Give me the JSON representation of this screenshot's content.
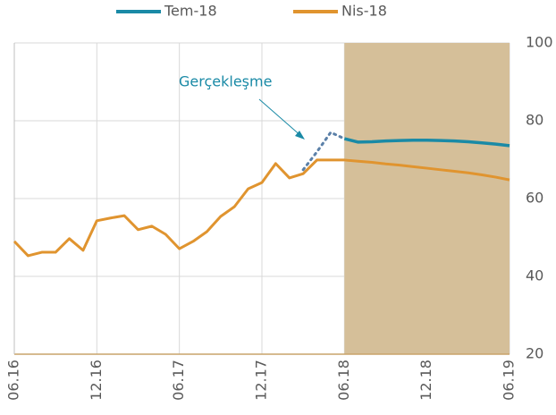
{
  "chart_data": {
    "type": "line",
    "categories": [
      "06.16",
      null,
      null,
      null,
      null,
      null,
      "12.16",
      null,
      null,
      null,
      null,
      null,
      "06.17",
      null,
      null,
      null,
      null,
      null,
      "12.17",
      null,
      null,
      null,
      null,
      null,
      "06.18",
      null,
      null,
      null,
      null,
      null,
      "12.18",
      null,
      null,
      null,
      null,
      null,
      "06.19"
    ],
    "series": [
      {
        "name": "Tem-18",
        "color": "#1a8aa6",
        "values": [
          null,
          null,
          null,
          null,
          null,
          null,
          null,
          null,
          null,
          null,
          null,
          null,
          null,
          null,
          null,
          null,
          null,
          null,
          null,
          null,
          null,
          null,
          null,
          null,
          75.4,
          74.5,
          74.6,
          74.8,
          74.9,
          75.0,
          75.0,
          74.9,
          74.8,
          74.6,
          74.3,
          74.0,
          73.6
        ]
      },
      {
        "name": "Nis-18",
        "color": "#e0942f",
        "values": [
          49.0,
          45.3,
          46.2,
          46.2,
          49.7,
          46.7,
          54.3,
          55.0,
          55.6,
          52.0,
          52.9,
          50.8,
          47.1,
          49.0,
          51.5,
          55.4,
          57.9,
          62.5,
          64.1,
          69.0,
          65.3,
          66.4,
          69.9,
          69.9,
          69.9,
          69.6,
          69.3,
          68.9,
          68.6,
          68.2,
          67.8,
          67.4,
          67.0,
          66.6,
          66.1,
          65.5,
          64.8
        ]
      }
    ],
    "annotation": {
      "text": "Gerçekleşme",
      "color": "#5b80a8",
      "values": [
        null,
        null,
        null,
        null,
        null,
        null,
        null,
        null,
        null,
        null,
        null,
        null,
        null,
        null,
        null,
        null,
        null,
        null,
        null,
        null,
        null,
        67.4,
        72.0,
        77.0,
        75.4,
        null,
        null,
        null,
        null,
        null,
        null,
        null,
        null,
        null,
        null,
        null,
        null
      ]
    },
    "shade": {
      "from": "06.18",
      "color": "#d5bf99"
    },
    "ylim": [
      20,
      100
    ],
    "yticks": [
      20,
      40,
      60,
      80,
      100
    ],
    "grid": true
  }
}
